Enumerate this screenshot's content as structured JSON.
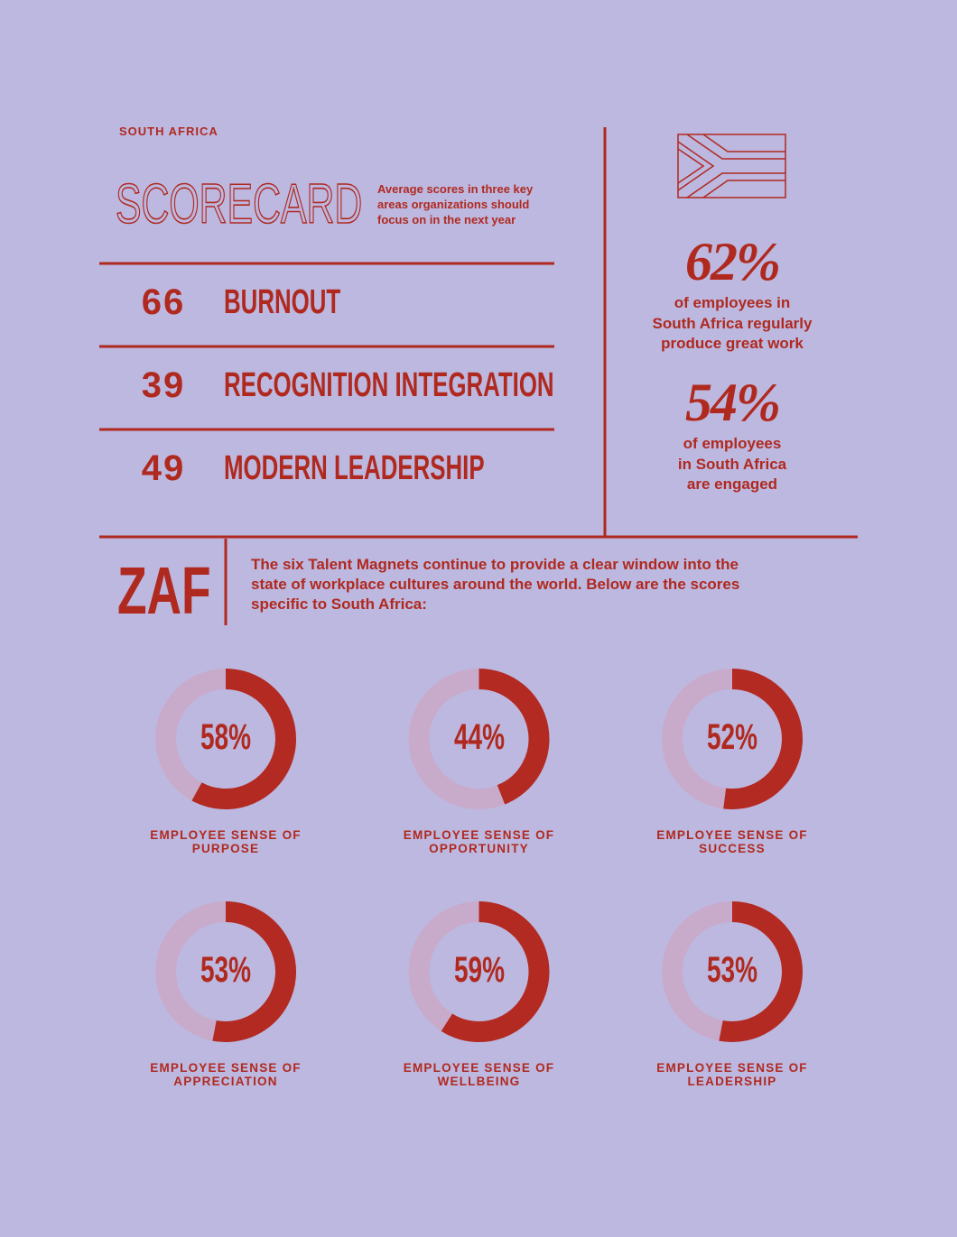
{
  "header": {
    "country": "SOUTH AFRICA",
    "title": "SCORECARD",
    "subtitle": "Average scores in three key areas organizations should focus on in the next year"
  },
  "scores": [
    {
      "value": "66",
      "label": "BURNOUT"
    },
    {
      "value": "39",
      "label": "RECOGNITION INTEGRATION"
    },
    {
      "value": "49",
      "label": "MODERN LEADERSHIP"
    }
  ],
  "stats": [
    {
      "value": "62%",
      "lines": [
        "of employees in",
        "South Africa regularly",
        "produce great work"
      ]
    },
    {
      "value": "54%",
      "lines": [
        "of employees",
        "in South Africa",
        "are engaged"
      ]
    }
  ],
  "intro": {
    "code": "ZAF",
    "text": "The six Talent Magnets continue to provide a clear window into the state of workplace cultures around the world. Below are the scores specific to South Africa:"
  },
  "chart_data": {
    "type": "donut",
    "categories": [
      "EMPLOYEE SENSE OF PURPOSE",
      "EMPLOYEE SENSE OF OPPORTUNITY",
      "EMPLOYEE SENSE OF SUCCESS",
      "EMPLOYEE SENSE OF APPRECIATION",
      "EMPLOYEE SENSE OF WELLBEING",
      "EMPLOYEE SENSE OF LEADERSHIP"
    ],
    "values": [
      58,
      44,
      52,
      53,
      59,
      53
    ],
    "value_labels": [
      "58%",
      "44%",
      "52%",
      "53%",
      "59%",
      "53%"
    ],
    "color": "#b22a21",
    "track_color": "#c8abcb"
  }
}
